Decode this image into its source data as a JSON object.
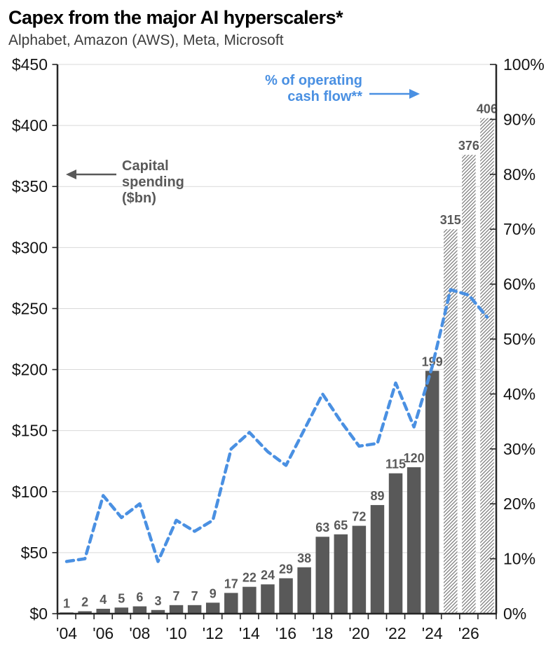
{
  "chart_data": {
    "type": "bar+line",
    "title": "Capex from the major AI hyperscalers*",
    "subtitle": "Alphabet, Amazon (AWS), Meta, Microsoft",
    "categories": [
      2004,
      2005,
      2006,
      2007,
      2008,
      2009,
      2010,
      2011,
      2012,
      2013,
      2014,
      2015,
      2016,
      2017,
      2018,
      2019,
      2020,
      2021,
      2022,
      2023,
      2024,
      2025,
      2026,
      2027
    ],
    "x_tick_labels": [
      "'04",
      "'06",
      "'08",
      "'10",
      "'12",
      "'14",
      "'16",
      "'18",
      "'20",
      "'22",
      "'24",
      "'26"
    ],
    "series": [
      {
        "name": "Capital spending ($bn)",
        "type": "bar",
        "axis": "left",
        "color": "#595959",
        "values": [
          1,
          2,
          4,
          5,
          6,
          3,
          7,
          7,
          9,
          17,
          22,
          24,
          29,
          38,
          63,
          65,
          72,
          89,
          115,
          120,
          199,
          315,
          376,
          406
        ],
        "value_labels": [
          "1",
          "2",
          "4",
          "5",
          "6",
          "3",
          "7",
          "7",
          "9",
          "17",
          "22",
          "24",
          "29",
          "38",
          "63",
          "65",
          "72",
          "89",
          "115",
          "120",
          "199",
          "315",
          "376",
          "406"
        ],
        "estimate_from_index": 21,
        "estimate_style": "diagonal-hatch"
      },
      {
        "name": "% of operating cash flow**",
        "type": "line",
        "axis": "right",
        "color": "#4a90e2",
        "style": "dashed",
        "values": [
          9.5,
          10,
          21.5,
          17.5,
          20,
          9.5,
          17,
          15,
          17,
          30,
          33,
          29.5,
          27,
          33.5,
          40,
          35,
          30.5,
          31,
          42,
          34,
          45,
          59,
          58,
          54
        ]
      }
    ],
    "left_axis": {
      "min": 0,
      "max": 450,
      "step": 50,
      "labels": [
        "$0",
        "$50",
        "$100",
        "$150",
        "$200",
        "$250",
        "$300",
        "$350",
        "$400",
        "$450"
      ]
    },
    "right_axis": {
      "min": 0,
      "max": 100,
      "step": 10,
      "labels": [
        "0%",
        "10%",
        "20%",
        "30%",
        "40%",
        "50%",
        "60%",
        "70%",
        "80%",
        "90%",
        "100%"
      ]
    },
    "grid": true,
    "legend_position": "none"
  },
  "annotations": {
    "capital_spending": {
      "text": "Capital spending ($bn)",
      "arrow": "left"
    },
    "pct_of_ocf": {
      "text": "% of operating cash flow**",
      "arrow": "right"
    }
  },
  "colors": {
    "bar": "#595959",
    "bar_label": "#595959",
    "line": "#4a90e2",
    "gridline": "#d9d9d9",
    "axis": "#262626",
    "hatch_stroke": "#7f7f7f"
  }
}
